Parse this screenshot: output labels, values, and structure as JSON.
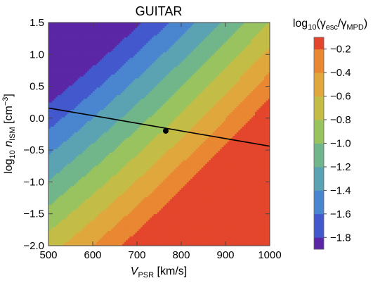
{
  "chart_data": {
    "type": "contour",
    "title": "GUITAR",
    "xlabel": {
      "main": "V",
      "sub": "PSR",
      "rest": " [km/s]"
    },
    "ylabel": {
      "pre": "log",
      "pre_sub": "10",
      "main": " n",
      "sub": "ISM",
      "rest": " [cm",
      "sup": "−3",
      "end": "]"
    },
    "xlim": [
      500,
      1000
    ],
    "ylim": [
      -2.0,
      1.5
    ],
    "x_ticks": [
      500,
      600,
      700,
      800,
      900,
      1000
    ],
    "y_ticks": [
      1.5,
      1.0,
      0.5,
      0.0,
      -0.5,
      -1.0,
      -1.5,
      -2.0
    ],
    "y_tick_labels": [
      "1.5",
      "1.0",
      "0.5",
      "0.0",
      "−0.5",
      "−1.0",
      "−1.5",
      "−2.0"
    ],
    "colorbar": {
      "title": {
        "pre": "log",
        "pre_sub": "10",
        "open": "(γ",
        "sub1": "esc",
        "mid": "/γ",
        "sub2": "MPD",
        "close": ")"
      },
      "levels": [
        -1.9,
        -1.8,
        -1.6,
        -1.4,
        -1.2,
        -1.0,
        -0.8,
        -0.6,
        -0.4,
        -0.2,
        -0.1
      ],
      "tick_values": [
        -1.8,
        -1.6,
        -1.4,
        -1.2,
        -1.0,
        -0.8,
        -0.6,
        -0.4,
        -0.2
      ],
      "tick_labels": [
        "−1.8",
        "−1.6",
        "−1.4",
        "−1.2",
        "−1.0",
        "−0.8",
        "−0.6",
        "−0.4",
        "−0.2"
      ],
      "colors": [
        "#5b27a6",
        "#4358cd",
        "#4a85d0",
        "#5ba3b3",
        "#71b68a",
        "#99c35f",
        "#c3bd47",
        "#e0a73d",
        "#e98733",
        "#e4462d"
      ]
    },
    "field_model": {
      "offset": -0.8,
      "x_coef": 0.0033,
      "y_coef": -0.5,
      "curv": 0.06,
      "x_ref": 750,
      "y_ref": -0.25
    },
    "line": {
      "x": [
        500,
        600,
        700,
        800,
        900,
        1000
      ],
      "y": [
        0.16,
        0.04,
        -0.08,
        -0.2,
        -0.32,
        -0.44
      ]
    },
    "point": {
      "x": 765,
      "y": -0.2
    }
  }
}
